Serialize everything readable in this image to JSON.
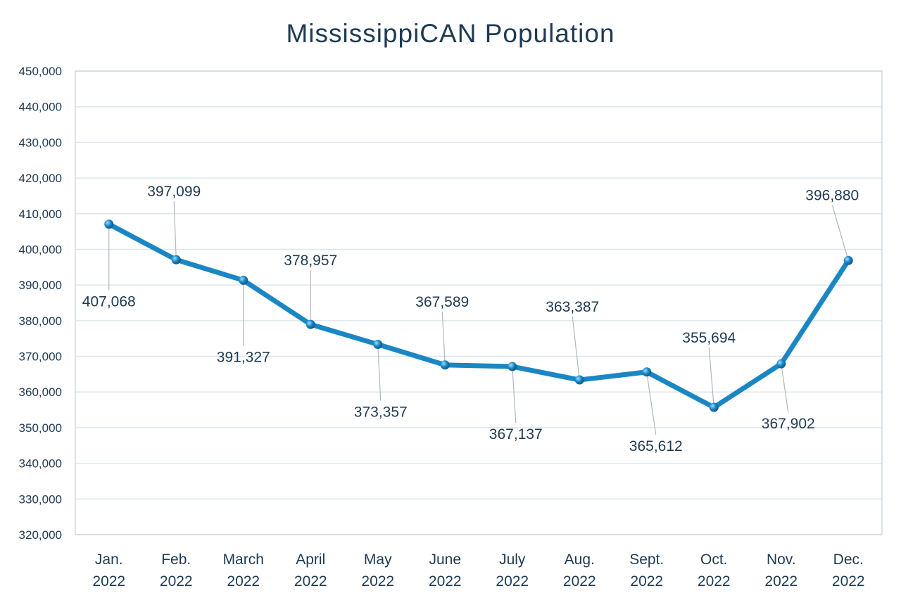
{
  "chart_data": {
    "type": "line",
    "title": "MississippiCAN Population",
    "xlabel": "",
    "ylabel": "",
    "categories": [
      [
        "Jan.",
        "2022"
      ],
      [
        "Feb.",
        "2022"
      ],
      [
        "March",
        "2022"
      ],
      [
        "April",
        "2022"
      ],
      [
        "May",
        "2022"
      ],
      [
        "June",
        "2022"
      ],
      [
        "July",
        "2022"
      ],
      [
        "Aug.",
        "2022"
      ],
      [
        "Sept.",
        "2022"
      ],
      [
        "Oct.",
        "2022"
      ],
      [
        "Nov.",
        "2022"
      ],
      [
        "Dec.",
        "2022"
      ]
    ],
    "values": [
      407068,
      397099,
      391327,
      378957,
      373357,
      367589,
      367137,
      363387,
      365612,
      355694,
      367902,
      396880
    ],
    "data_labels": [
      "407,068",
      "397,099",
      "391,327",
      "378,957",
      "373,357",
      "367,589",
      "367,137",
      "363,387",
      "365,612",
      "355,694",
      "367,902",
      "396,880"
    ],
    "ylim": [
      320000,
      450000
    ],
    "ytick_step": 10000,
    "yticks": [
      "320,000",
      "330,000",
      "340,000",
      "350,000",
      "360,000",
      "370,000",
      "380,000",
      "390,000",
      "400,000",
      "410,000",
      "420,000",
      "430,000",
      "440,000",
      "450,000"
    ],
    "grid": true,
    "legend": "none",
    "colors": {
      "line": "#1a87c4",
      "text": "#1f3a52",
      "grid": "#dfe6ea",
      "leader": "#b0b8be"
    }
  }
}
